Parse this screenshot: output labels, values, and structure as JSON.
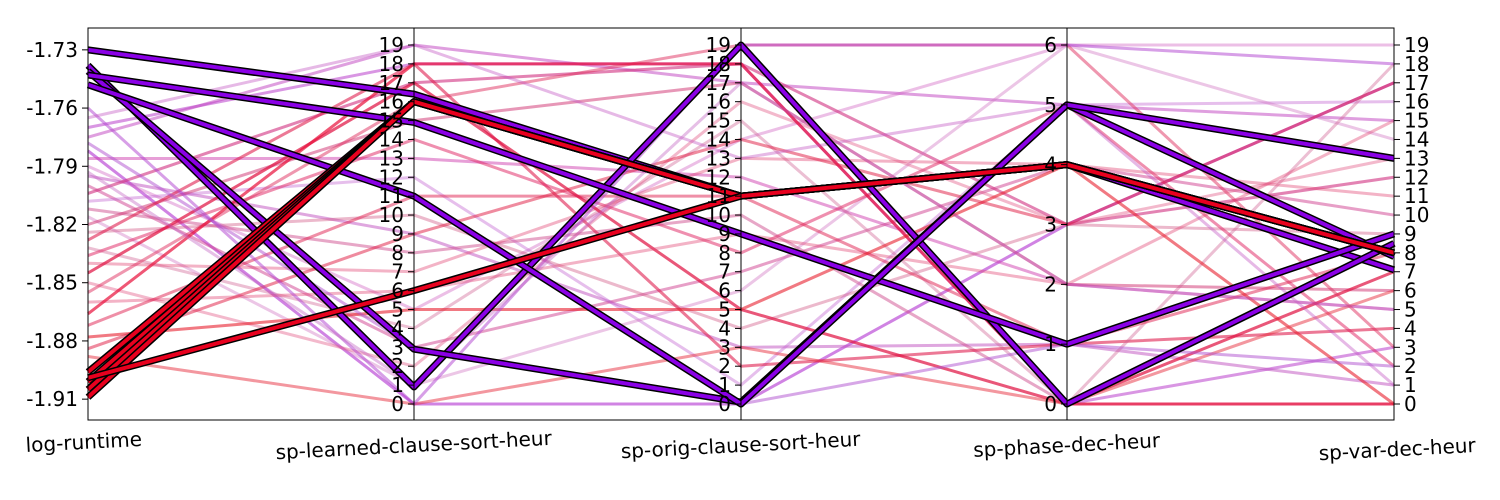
{
  "chart_data": {
    "type": "parallel-coordinates",
    "axes": [
      {
        "name": "log-runtime",
        "ticks": [
          "-1.73",
          "-1.76",
          "-1.79",
          "-1.82",
          "-1.85",
          "-1.88",
          "-1.91"
        ],
        "range": [
          -1.9125,
          -1.7275
        ]
      },
      {
        "name": "sp-learned-clause-sort-heur",
        "ticks": [
          "0",
          "1",
          "2",
          "3",
          "4",
          "5",
          "6",
          "7",
          "8",
          "9",
          "10",
          "11",
          "12",
          "13",
          "14",
          "15",
          "16",
          "17",
          "18",
          "19"
        ],
        "range": [
          0,
          19
        ]
      },
      {
        "name": "sp-orig-clause-sort-heur",
        "ticks": [
          "0",
          "1",
          "2",
          "3",
          "4",
          "5",
          "6",
          "7",
          "8",
          "9",
          "10",
          "11",
          "12",
          "13",
          "14",
          "15",
          "16",
          "17",
          "18",
          "19"
        ],
        "range": [
          0,
          19
        ]
      },
      {
        "name": "sp-phase-dec-heur",
        "ticks": [
          "0",
          "1",
          "2",
          "3",
          "4",
          "5",
          "6"
        ],
        "range": [
          0,
          6
        ]
      },
      {
        "name": "sp-var-dec-heur",
        "ticks": [
          "0",
          "1",
          "2",
          "3",
          "4",
          "5",
          "6",
          "7",
          "8",
          "9",
          "10",
          "11",
          "12",
          "13",
          "14",
          "15",
          "16",
          "17",
          "18",
          "19"
        ],
        "range": [
          0,
          19
        ]
      }
    ],
    "colors": {
      "low": "#e8001e",
      "high": "#8a00e6",
      "outline": "#000000"
    },
    "highlighted_lines": [
      {
        "values": [
          -1.73,
          16.4,
          11.0,
          4.0,
          7.1
        ],
        "color": "#8a00e6"
      },
      {
        "values": [
          -1.738,
          0.9,
          19.0,
          0.0,
          8.5
        ],
        "color": "#8a00e6"
      },
      {
        "values": [
          -1.741,
          2.9,
          0.1,
          5.0,
          7.8
        ],
        "color": "#8a00e6"
      },
      {
        "values": [
          -1.743,
          14.9,
          9.0,
          1.0,
          9.0
        ],
        "color": "#8a00e6"
      },
      {
        "values": [
          -1.748,
          11.0,
          0.0,
          5.0,
          13.0
        ],
        "color": "#8a00e6"
      },
      {
        "values": [
          -1.896,
          16.0,
          11.0,
          4.0,
          8.0
        ],
        "color": "#e8001e"
      },
      {
        "values": [
          -1.901,
          16.0,
          11.0,
          4.0,
          8.0
        ],
        "color": "#e8001e"
      },
      {
        "values": [
          -1.905,
          16.0,
          11.0,
          4.0,
          8.0
        ],
        "color": "#e8001e"
      },
      {
        "values": [
          -1.909,
          16.0,
          11.0,
          4.0,
          8.0
        ],
        "color": "#e8001e"
      },
      {
        "values": [
          -1.899,
          6.0,
          11.0,
          4.0,
          8.0
        ],
        "color": "#e8001e"
      }
    ],
    "background_lines": [
      {
        "values": [
          -1.77,
          18.0,
          18.0,
          0.0,
          3.0
        ],
        "color": "#c050d0",
        "alpha": 0.6
      },
      {
        "values": [
          -1.775,
          19.0,
          17.0,
          5.0,
          15.0
        ],
        "color": "#c040c0",
        "alpha": 0.5
      },
      {
        "values": [
          -1.782,
          0.0,
          0.0,
          3.0,
          17.0
        ],
        "color": "#b030d0",
        "alpha": 0.6
      },
      {
        "values": [
          -1.786,
          13.0,
          12.0,
          2.0,
          5.0
        ],
        "color": "#d040b0",
        "alpha": 0.5
      },
      {
        "values": [
          -1.79,
          5.0,
          14.0,
          6.0,
          19.0
        ],
        "color": "#d060c0",
        "alpha": 0.4
      },
      {
        "values": [
          -1.795,
          9.0,
          3.0,
          1.0,
          1.0
        ],
        "color": "#c050c0",
        "alpha": 0.5
      },
      {
        "values": [
          -1.8,
          3.0,
          7.0,
          4.0,
          10.0
        ],
        "color": "#d04090",
        "alpha": 0.5
      },
      {
        "values": [
          -1.804,
          17.0,
          18.0,
          3.0,
          12.0
        ],
        "color": "#d03080",
        "alpha": 0.6
      },
      {
        "values": [
          -1.808,
          12.0,
          1.0,
          5.0,
          16.0
        ],
        "color": "#c060d0",
        "alpha": 0.4
      },
      {
        "values": [
          -1.812,
          8.0,
          10.0,
          0.0,
          0.0
        ],
        "color": "#d05090",
        "alpha": 0.5
      },
      {
        "values": [
          -1.816,
          1.0,
          6.0,
          6.0,
          14.0
        ],
        "color": "#d070c0",
        "alpha": 0.4
      },
      {
        "values": [
          -1.82,
          15.0,
          17.0,
          2.0,
          6.0
        ],
        "color": "#d03070",
        "alpha": 0.5
      },
      {
        "values": [
          -1.824,
          10.0,
          4.0,
          3.0,
          9.0
        ],
        "color": "#d05080",
        "alpha": 0.4
      },
      {
        "values": [
          -1.828,
          18.0,
          2.0,
          1.0,
          4.0
        ],
        "color": "#e02050",
        "alpha": 0.6
      },
      {
        "values": [
          -1.832,
          4.0,
          15.0,
          0.0,
          18.0
        ],
        "color": "#d06090",
        "alpha": 0.4
      },
      {
        "values": [
          -1.836,
          14.0,
          8.0,
          5.0,
          2.0
        ],
        "color": "#e02060",
        "alpha": 0.5
      },
      {
        "values": [
          -1.84,
          7.0,
          13.0,
          4.0,
          11.0
        ],
        "color": "#e04070",
        "alpha": 0.4
      },
      {
        "values": [
          -1.845,
          17.0,
          5.0,
          0.0,
          7.0
        ],
        "color": "#e01040",
        "alpha": 0.7
      },
      {
        "values": [
          -1.85,
          2.0,
          16.0,
          3.0,
          13.0
        ],
        "color": "#e05080",
        "alpha": 0.4
      },
      {
        "values": [
          -1.855,
          16.0,
          19.0,
          6.0,
          3.0
        ],
        "color": "#e03060",
        "alpha": 0.5
      },
      {
        "values": [
          -1.86,
          6.0,
          9.0,
          2.0,
          15.0
        ],
        "color": "#e04070",
        "alpha": 0.4
      },
      {
        "values": [
          -1.866,
          18.0,
          18.0,
          0.0,
          0.0
        ],
        "color": "#e8103a",
        "alpha": 0.7
      },
      {
        "values": [
          -1.872,
          11.0,
          11.0,
          1.0,
          8.0
        ],
        "color": "#e02050",
        "alpha": 0.5
      },
      {
        "values": [
          -1.878,
          5.0,
          5.0,
          4.0,
          0.0
        ],
        "color": "#e8202e",
        "alpha": 0.6
      },
      {
        "values": [
          -1.884,
          9.0,
          14.0,
          3.0,
          17.0
        ],
        "color": "#e01840",
        "alpha": 0.5
      },
      {
        "values": [
          -1.888,
          0.0,
          3.0,
          0.0,
          6.0
        ],
        "color": "#e83040",
        "alpha": 0.5
      },
      {
        "values": [
          -1.76,
          0.0,
          19.0,
          6.0,
          18.0
        ],
        "color": "#b040d0",
        "alpha": 0.5
      },
      {
        "values": [
          -1.765,
          19.0,
          13.0,
          5.0,
          1.0
        ],
        "color": "#c050c0",
        "alpha": 0.4
      },
      {
        "values": [
          -1.778,
          3.0,
          0.0,
          1.0,
          2.0
        ],
        "color": "#b050d0",
        "alpha": 0.5
      },
      {
        "values": [
          -1.793,
          1.0,
          17.0,
          2.0,
          5.0
        ],
        "color": "#c060c0",
        "alpha": 0.4
      }
    ]
  }
}
